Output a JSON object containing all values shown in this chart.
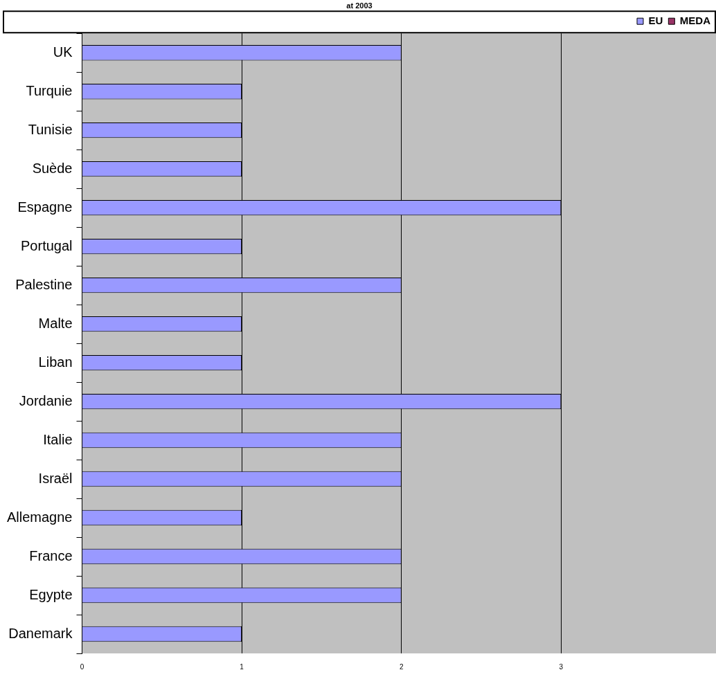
{
  "chart_data": {
    "type": "bar",
    "orientation": "horizontal",
    "title": "at 2003",
    "categories": [
      "UK",
      "Turquie",
      "Tunisie",
      "Suède",
      "Espagne",
      "Portugal",
      "Palestine",
      "Malte",
      "Liban",
      "Jordanie",
      "Italie",
      "Israël",
      "Allemagne",
      "France",
      "Egypte",
      "Danemark"
    ],
    "series": [
      {
        "name": "EU",
        "color": "#9999ff",
        "values": [
          2,
          1,
          1,
          1,
          3,
          1,
          2,
          1,
          1,
          3,
          2,
          2,
          1,
          2,
          2,
          1
        ]
      },
      {
        "name": "MEDA",
        "color": "#993366",
        "values": [
          null,
          null,
          null,
          null,
          null,
          null,
          null,
          null,
          null,
          null,
          null,
          null,
          null,
          null,
          null,
          null
        ]
      }
    ],
    "xlim": [
      0,
      3.97
    ],
    "xticks": [
      0,
      1,
      2,
      3
    ],
    "grid": "x",
    "legend": "top right"
  }
}
